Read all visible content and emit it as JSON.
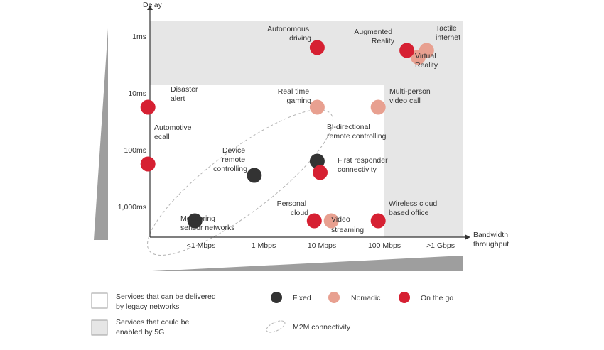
{
  "chart_data": {
    "type": "scatter",
    "xlabel_lines": [
      "Bandwidth",
      "throughput"
    ],
    "ylabel": "Delay",
    "x_categories": [
      "<1 Mbps",
      "1 Mbps",
      "10 Mbps",
      "100 Mbps",
      ">1 Gbps"
    ],
    "y_categories": [
      "1ms",
      "10ms",
      "100ms",
      "1,000ms"
    ],
    "colors": {
      "fixed": "#333333",
      "nomadic": "#e8a090",
      "on_the_go": "#d62032",
      "region_5g": "#e6e6e6",
      "wedge": "#9e9e9e"
    },
    "points": [
      {
        "lines": [
          "Autonomous",
          "driving"
        ],
        "x": 1.92,
        "y": 0.2,
        "category": "on_the_go"
      },
      {
        "lines": [
          "Augmented",
          "Reality"
        ],
        "x": 3.4,
        "y": 0.25,
        "category": "on_the_go"
      },
      {
        "lines": [
          "Virtual",
          "Reality"
        ],
        "x": 3.6,
        "y": 0.37,
        "category": "nomadic"
      },
      {
        "lines": [
          "Tactile",
          "internet"
        ],
        "x": 3.75,
        "y": 0.25,
        "category": "nomadic"
      },
      {
        "lines": [
          "Disaster",
          "alert"
        ],
        "x": -0.85,
        "y": 1.25,
        "category": "on_the_go"
      },
      {
        "lines": [
          "Real time",
          "gaming"
        ],
        "x": 1.92,
        "y": 1.25,
        "category": "nomadic"
      },
      {
        "lines": [
          "Multi-person",
          "video call"
        ],
        "x": 2.9,
        "y": 1.25,
        "category": "nomadic"
      },
      {
        "lines": [
          "Automotive",
          "ecall"
        ],
        "x": -0.85,
        "y": 2.25,
        "category": "on_the_go"
      },
      {
        "lines": [
          "Device",
          "remote",
          "controlling"
        ],
        "x": 0.85,
        "y": 2.45,
        "category": "fixed"
      },
      {
        "lines": [
          "Bi-directional",
          "remote controlling"
        ],
        "x": 1.92,
        "y": 2.2,
        "category": "fixed"
      },
      {
        "lines": [
          "First responder",
          "connectivity"
        ],
        "x": 1.97,
        "y": 2.4,
        "category": "on_the_go"
      },
      {
        "lines": [
          "Monitoring",
          "sensor networks"
        ],
        "x": -0.1,
        "y": 3.25,
        "category": "fixed"
      },
      {
        "lines": [
          "Personal",
          "cloud"
        ],
        "x": 1.87,
        "y": 3.25,
        "category": "on_the_go"
      },
      {
        "lines": [
          "Video",
          "streaming"
        ],
        "x": 2.15,
        "y": 3.25,
        "category": "nomadic"
      },
      {
        "lines": [
          "Wireless cloud",
          "based office"
        ],
        "x": 2.9,
        "y": 3.25,
        "category": "on_the_go"
      }
    ]
  },
  "legend": {
    "legacy_lines": [
      "Services that can be delivered",
      "by legacy networks"
    ],
    "fiveg_lines": [
      "Services that could be",
      "enabled by 5G"
    ],
    "fixed": "Fixed",
    "nomadic": "Nomadic",
    "on_the_go": "On the go",
    "m2m": "M2M connectivity"
  }
}
